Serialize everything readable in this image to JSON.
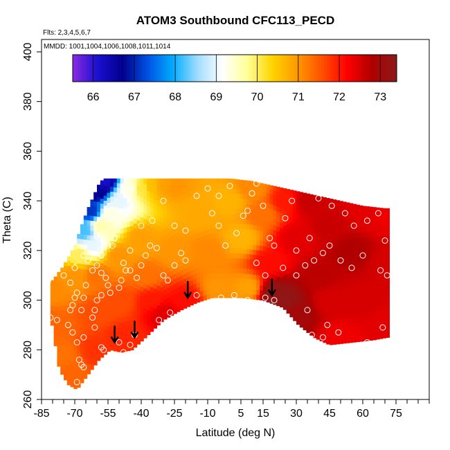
{
  "chart_data": {
    "type": "heatmap",
    "title": "ATOM3 Southbound CFC113_PECD",
    "note_flights": "Flts: 2,3,4,5,6,7",
    "note_dates": "MMDD: 1001,1004,1006,1008,1011,1014",
    "xlabel": "Latitude (deg N)",
    "ylabel": "Theta (C)",
    "xlim": [
      -85,
      90
    ],
    "ylim": [
      260,
      405
    ],
    "xticks": [
      -85,
      -70,
      -55,
      -40,
      -25,
      -10,
      5,
      15,
      30,
      45,
      60,
      75
    ],
    "xticks_minor_step": 5,
    "yticks": [
      260,
      280,
      300,
      320,
      340,
      360,
      380,
      400
    ],
    "colorbar": {
      "min": 65.5,
      "max": 73.4,
      "ticks": [
        66,
        67,
        68,
        69,
        70,
        71,
        72,
        73
      ],
      "colors": [
        "#8a2be2",
        "#1a0fd0",
        "#00008b",
        "#0050e0",
        "#00aaff",
        "#a0dcff",
        "#ffffff",
        "#ffff99",
        "#ffd400",
        "#ff9900",
        "#ff5000",
        "#ff0000",
        "#b00000",
        "#8b1a1a"
      ]
    },
    "upper_boundary": [
      [
        -80,
        308
      ],
      [
        -75,
        314
      ],
      [
        -70,
        322
      ],
      [
        -67,
        330
      ],
      [
        -64,
        337
      ],
      [
        -61,
        343
      ],
      [
        -59,
        347
      ],
      [
        -57,
        349
      ],
      [
        -45,
        349
      ],
      [
        -30,
        349
      ],
      [
        -15,
        349
      ],
      [
        0,
        349
      ],
      [
        10,
        348
      ],
      [
        20,
        346
      ],
      [
        30,
        344
      ],
      [
        40,
        342
      ],
      [
        50,
        340
      ],
      [
        60,
        338
      ],
      [
        70,
        337
      ]
    ],
    "lower_boundary": [
      [
        -81,
        294
      ],
      [
        -79,
        283
      ],
      [
        -77,
        272
      ],
      [
        -73,
        266
      ],
      [
        -69,
        264
      ],
      [
        -64,
        270
      ],
      [
        -59,
        276
      ],
      [
        -54,
        280
      ],
      [
        -49,
        279
      ],
      [
        -44,
        280
      ],
      [
        -38,
        285
      ],
      [
        -30,
        292
      ],
      [
        -22,
        296
      ],
      [
        -15,
        299
      ],
      [
        -8,
        301
      ],
      [
        5,
        301
      ],
      [
        15,
        300
      ],
      [
        24,
        297
      ],
      [
        31,
        290
      ],
      [
        38,
        285
      ],
      [
        45,
        282
      ],
      [
        55,
        283
      ],
      [
        65,
        284
      ],
      [
        71,
        285
      ]
    ],
    "anchors": [
      [
        -80,
        305,
        71.1
      ],
      [
        -78,
        290,
        71.4
      ],
      [
        -76,
        278,
        71.3
      ],
      [
        -72,
        270,
        71.4
      ],
      [
        -70,
        310,
        71.0
      ],
      [
        -68,
        318,
        70.0
      ],
      [
        -66,
        328,
        68.2
      ],
      [
        -63,
        336,
        67.1
      ],
      [
        -60,
        344,
        66.6
      ],
      [
        -57,
        348,
        66.2
      ],
      [
        -62,
        322,
        69.0
      ],
      [
        -58,
        330,
        69.6
      ],
      [
        -54,
        335,
        69.3
      ],
      [
        -50,
        340,
        69.0
      ],
      [
        -45,
        345,
        69.3
      ],
      [
        -40,
        345,
        70.1
      ],
      [
        -35,
        346,
        70.6
      ],
      [
        -30,
        346,
        70.9
      ],
      [
        -25,
        346,
        71.0
      ],
      [
        -60,
        310,
        71.3
      ],
      [
        -60,
        295,
        71.6
      ],
      [
        -60,
        280,
        71.8
      ],
      [
        -50,
        318,
        71.0
      ],
      [
        -50,
        300,
        71.6
      ],
      [
        -48,
        285,
        71.9
      ],
      [
        -40,
        325,
        70.9
      ],
      [
        -38,
        310,
        71.3
      ],
      [
        -35,
        300,
        72.0
      ],
      [
        -30,
        295,
        72.4
      ],
      [
        -25,
        320,
        71.0
      ],
      [
        -20,
        300,
        72.1
      ],
      [
        -15,
        335,
        70.8
      ],
      [
        -10,
        320,
        71.1
      ],
      [
        -5,
        305,
        71.0
      ],
      [
        0,
        340,
        70.7
      ],
      [
        5,
        325,
        70.7
      ],
      [
        8,
        305,
        70.9
      ],
      [
        10,
        345,
        71.1
      ],
      [
        15,
        335,
        71.3
      ],
      [
        18,
        315,
        72.1
      ],
      [
        20,
        303,
        73.3
      ],
      [
        25,
        300,
        73.3
      ],
      [
        25,
        340,
        72.0
      ],
      [
        30,
        325,
        72.4
      ],
      [
        30,
        295,
        73.0
      ],
      [
        35,
        340,
        72.6
      ],
      [
        40,
        310,
        72.7
      ],
      [
        45,
        300,
        72.5
      ],
      [
        45,
        330,
        72.6
      ],
      [
        50,
        285,
        72.3
      ],
      [
        55,
        320,
        72.8
      ],
      [
        60,
        300,
        72.5
      ],
      [
        62,
        335,
        72.4
      ],
      [
        70,
        335,
        72.3
      ],
      [
        70,
        290,
        72.4
      ],
      [
        72,
        315,
        72.5
      ]
    ],
    "points": [
      [
        -82,
        308
      ],
      [
        -81,
        293
      ],
      [
        -78,
        292
      ],
      [
        -75,
        310
      ],
      [
        -72,
        307
      ],
      [
        -70,
        301
      ],
      [
        -69,
        303
      ],
      [
        -71,
        298
      ],
      [
        -67,
        296
      ],
      [
        -66,
        301
      ],
      [
        -65,
        306
      ],
      [
        -69,
        283
      ],
      [
        -66,
        285
      ],
      [
        -68,
        276
      ],
      [
        -67,
        274
      ],
      [
        -66,
        273
      ],
      [
        -71,
        287
      ],
      [
        -69,
        267
      ],
      [
        -73,
        290
      ],
      [
        -72,
        296
      ],
      [
        -62,
        312
      ],
      [
        -60,
        314
      ],
      [
        -58,
        311
      ],
      [
        -56,
        309
      ],
      [
        -55,
        306
      ],
      [
        -54,
        303
      ],
      [
        -58,
        302
      ],
      [
        -60,
        300
      ],
      [
        -61,
        296
      ],
      [
        -62,
        293
      ],
      [
        -61,
        289
      ],
      [
        -58,
        281
      ],
      [
        -57,
        280
      ],
      [
        -50,
        283
      ],
      [
        -48,
        279
      ],
      [
        -45,
        282
      ],
      [
        -50,
        305
      ],
      [
        -49,
        308
      ],
      [
        -47,
        312
      ],
      [
        -48,
        315
      ],
      [
        -45,
        312
      ],
      [
        -42,
        309
      ],
      [
        -40,
        314
      ],
      [
        -38,
        318
      ],
      [
        -36,
        322
      ],
      [
        -33,
        321
      ],
      [
        -30,
        310
      ],
      [
        -28,
        308
      ],
      [
        -25,
        314
      ],
      [
        -22,
        319
      ],
      [
        -20,
        316
      ],
      [
        -15,
        302
      ],
      [
        -27,
        295
      ],
      [
        -32,
        292
      ],
      [
        -43,
        286
      ],
      [
        -52,
        325
      ],
      [
        -55,
        322
      ],
      [
        -58,
        318
      ],
      [
        -64,
        316
      ],
      [
        -66,
        318
      ],
      [
        -70,
        313
      ],
      [
        -60,
        326
      ],
      [
        -56,
        323
      ],
      [
        -53,
        322
      ],
      [
        -50,
        330
      ],
      [
        -48,
        345
      ],
      [
        -45,
        320
      ],
      [
        -40,
        330
      ],
      [
        -35,
        332
      ],
      [
        -30,
        340
      ],
      [
        -25,
        330
      ],
      [
        -20,
        328
      ],
      [
        -15,
        342
      ],
      [
        -10,
        345
      ],
      [
        -5,
        342
      ],
      [
        0,
        346
      ],
      [
        -8,
        335
      ],
      [
        -5,
        330
      ],
      [
        -2,
        322
      ],
      [
        3,
        327
      ],
      [
        6,
        334
      ],
      [
        8,
        336
      ],
      [
        10,
        343
      ],
      [
        12,
        347
      ],
      [
        15,
        338
      ],
      [
        18,
        325
      ],
      [
        20,
        322
      ],
      [
        16,
        310
      ],
      [
        12,
        315
      ],
      [
        8,
        300
      ],
      [
        2,
        302
      ],
      [
        -4,
        301
      ],
      [
        16,
        301
      ],
      [
        20,
        300
      ],
      [
        30,
        310
      ],
      [
        34,
        314
      ],
      [
        38,
        316
      ],
      [
        42,
        319
      ],
      [
        45,
        322
      ],
      [
        50,
        316
      ],
      [
        55,
        313
      ],
      [
        60,
        318
      ],
      [
        62,
        332
      ],
      [
        67,
        335
      ],
      [
        70,
        324
      ],
      [
        71,
        310
      ],
      [
        68,
        312
      ],
      [
        56,
        330
      ],
      [
        52,
        335
      ],
      [
        46,
        338
      ],
      [
        40,
        341
      ],
      [
        34,
        345
      ],
      [
        28,
        340
      ],
      [
        25,
        333
      ],
      [
        24,
        313
      ],
      [
        30,
        320
      ],
      [
        36,
        325
      ],
      [
        35,
        296
      ],
      [
        37,
        286
      ],
      [
        42,
        285
      ],
      [
        44,
        290
      ],
      [
        49,
        287
      ],
      [
        62,
        283
      ],
      [
        69,
        289
      ]
    ],
    "arrows": [
      {
        "lat": -52,
        "theta": 283
      },
      {
        "lat": -43,
        "theta": 285
      },
      {
        "lat": -19,
        "theta": 301
      },
      {
        "lat": 19,
        "theta": 302
      }
    ]
  }
}
